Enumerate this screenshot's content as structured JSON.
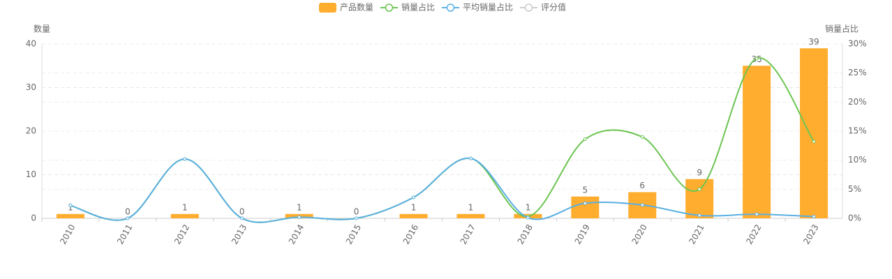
{
  "chart_data": {
    "type": "bar-line",
    "categories": [
      "2010",
      "2011",
      "2012",
      "2013",
      "2014",
      "2015",
      "2016",
      "2017",
      "2018",
      "2019",
      "2020",
      "2021",
      "2022",
      "2023"
    ],
    "ylabel": "数量",
    "y2label": "销量占比",
    "ylim": [
      0,
      40
    ],
    "yticks": [
      0,
      10,
      20,
      30,
      40
    ],
    "y2lim": [
      0,
      30
    ],
    "y2ticks": [
      {
        "value": 0,
        "label": "0%"
      },
      {
        "value": 5,
        "label": "5%"
      },
      {
        "value": 10,
        "label": "10%"
      },
      {
        "value": 15,
        "label": "15%"
      },
      {
        "value": 20,
        "label": "20%"
      },
      {
        "value": 25,
        "label": "25%"
      },
      {
        "value": 30,
        "label": "30%"
      }
    ],
    "grid": true,
    "legend": "top",
    "series": [
      {
        "name": "产品数量",
        "type": "bar",
        "color": "#ffad2f",
        "values": [
          1,
          0,
          1,
          0,
          1,
          0,
          1,
          1,
          1,
          5,
          6,
          9,
          35,
          39
        ]
      },
      {
        "name": "销量占比",
        "type": "line",
        "axis": "y2",
        "color": "#6cc551",
        "values": [
          2.2,
          0,
          10.2,
          0,
          0.2,
          0,
          3.6,
          10.3,
          0.3,
          13.6,
          14.0,
          5.0,
          27.5,
          13.2
        ]
      },
      {
        "name": "平均销量占比",
        "type": "line",
        "axis": "y2",
        "color": "#5aafe3",
        "values": [
          2.2,
          0,
          10.2,
          0,
          0.2,
          0,
          3.6,
          10.3,
          0.1,
          2.6,
          2.3,
          0.5,
          0.7,
          0.3
        ]
      },
      {
        "name": "评分值",
        "type": "line",
        "color": "#cccccc",
        "visible": false
      }
    ]
  }
}
